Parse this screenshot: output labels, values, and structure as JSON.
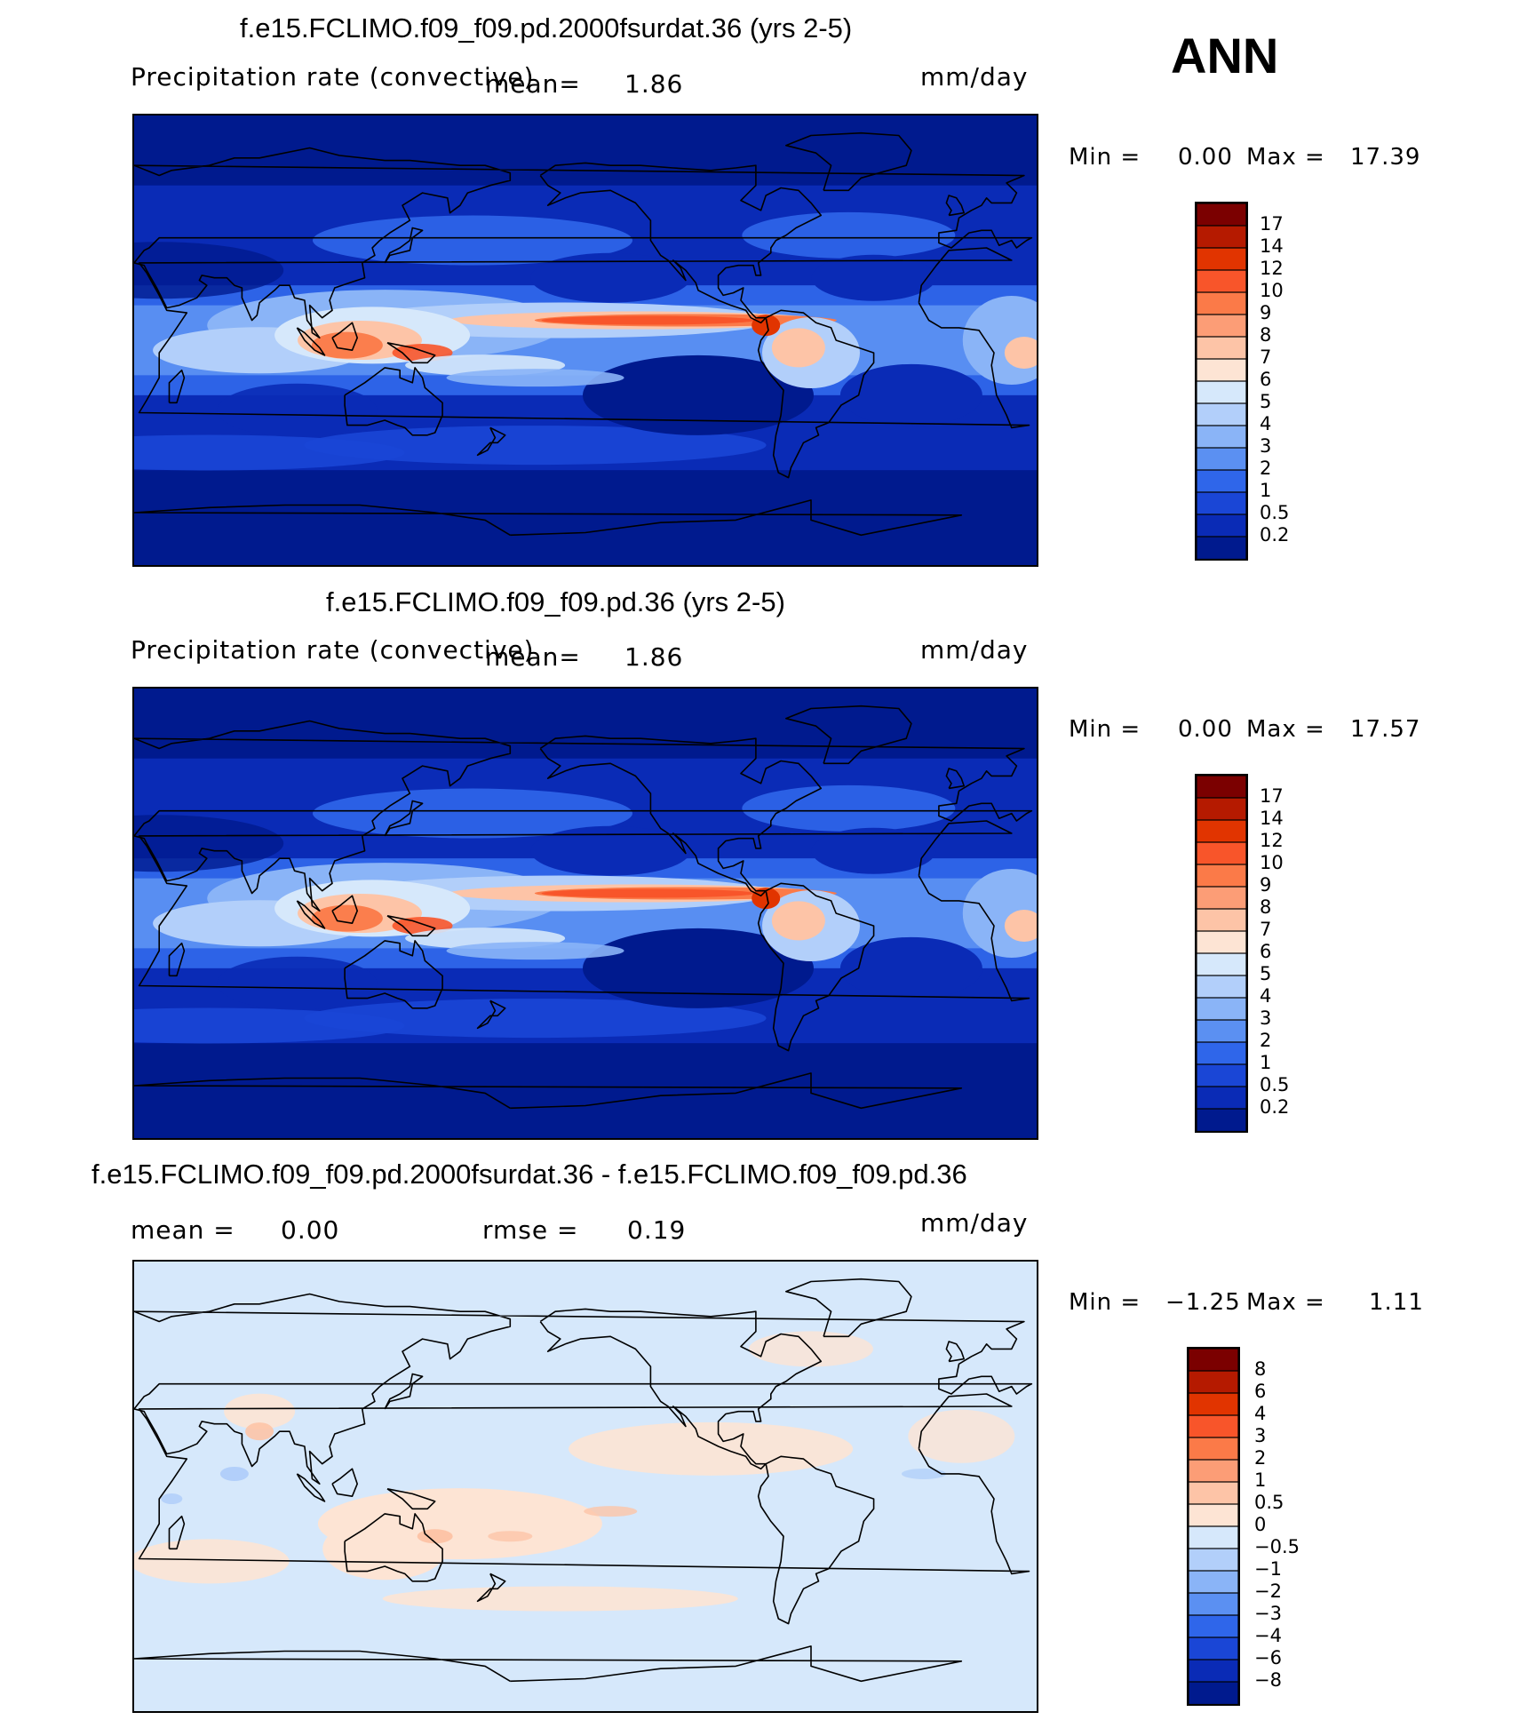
{
  "season": "ANN",
  "panels": [
    {
      "title": "f.e15.FCLIMO.f09_f09.pd.2000fsurdat.36 (yrs 2-5)",
      "variable": "Precipitation rate (convective)",
      "mean_label": "mean=",
      "mean": "1.86",
      "units": "mm/day",
      "min_label": "Min =",
      "min": "0.00",
      "max_label": "Max =",
      "max": "17.39",
      "colorbar": {
        "labels": [
          "17",
          "14",
          "12",
          "10",
          "9",
          "8",
          "7",
          "6",
          "5",
          "4",
          "3",
          "2",
          "1",
          "0.5",
          "0.2"
        ],
        "colors": [
          "#7b0000",
          "#b51a00",
          "#e13400",
          "#f8552a",
          "#fb7a48",
          "#fc9d76",
          "#fdc4a7",
          "#fde4d4",
          "#d6e8fb",
          "#b2cffa",
          "#8ab4f7",
          "#5b90f2",
          "#2f66ea",
          "#1a46d6",
          "#0a2bb6",
          "#001a8e"
        ]
      }
    },
    {
      "title": "f.e15.FCLIMO.f09_f09.pd.36 (yrs 2-5)",
      "variable": "Precipitation rate (convective)",
      "mean_label": "mean=",
      "mean": "1.86",
      "units": "mm/day",
      "min_label": "Min =",
      "min": "0.00",
      "max_label": "Max =",
      "max": "17.57",
      "colorbar": {
        "labels": [
          "17",
          "14",
          "12",
          "10",
          "9",
          "8",
          "7",
          "6",
          "5",
          "4",
          "3",
          "2",
          "1",
          "0.5",
          "0.2"
        ],
        "colors": [
          "#7b0000",
          "#b51a00",
          "#e13400",
          "#f8552a",
          "#fb7a48",
          "#fc9d76",
          "#fdc4a7",
          "#fde4d4",
          "#d6e8fb",
          "#b2cffa",
          "#8ab4f7",
          "#5b90f2",
          "#2f66ea",
          "#1a46d6",
          "#0a2bb6",
          "#001a8e"
        ]
      }
    },
    {
      "title": "f.e15.FCLIMO.f09_f09.pd.2000fsurdat.36 - f.e15.FCLIMO.f09_f09.pd.36",
      "mean_label": "mean =",
      "mean": "0.00",
      "rmse_label": "rmse =",
      "rmse": "0.19",
      "units": "mm/day",
      "min_label": "Min =",
      "min": "−1.25",
      "max_label": "Max =",
      "max": "1.11",
      "colorbar": {
        "labels": [
          "8",
          "6",
          "4",
          "3",
          "2",
          "1",
          "0.5",
          "0",
          "−0.5",
          "−1",
          "−2",
          "−3",
          "−4",
          "−6",
          "−8"
        ],
        "colors": [
          "#7b0000",
          "#b51a00",
          "#e13400",
          "#f8552a",
          "#fb7a48",
          "#fc9d76",
          "#fdc4a7",
          "#fde4d4",
          "#d6e8fb",
          "#b2cffa",
          "#8ab4f7",
          "#5b90f2",
          "#2f66ea",
          "#1a46d6",
          "#0a2bb6",
          "#001a8e"
        ]
      }
    }
  ]
}
